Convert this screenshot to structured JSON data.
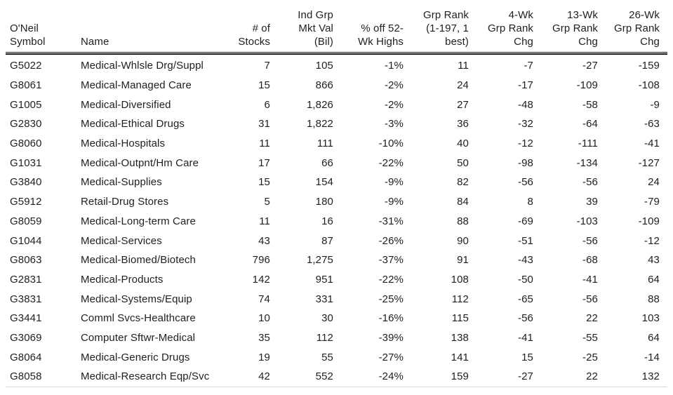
{
  "colors": {
    "text": "#1f1f1f",
    "header_rule": "#161616",
    "bottom_rule": "#d9d9d9",
    "background": "#ffffff"
  },
  "table": {
    "columns": [
      {
        "key": "symbol",
        "label": "O'Neil\nSymbol",
        "align": "left"
      },
      {
        "key": "name",
        "label": "Name",
        "align": "left"
      },
      {
        "key": "stocks",
        "label": "# of\nStocks",
        "align": "right"
      },
      {
        "key": "mktval",
        "label": "Ind Grp\nMkt Val\n(Bil)",
        "align": "right"
      },
      {
        "key": "pct_off",
        "label": "% off 52-\nWk Highs",
        "align": "right"
      },
      {
        "key": "grp_rank",
        "label": "Grp Rank\n(1-197, 1\nbest)",
        "align": "right"
      },
      {
        "key": "chg_4wk",
        "label": "4-Wk\nGrp Rank\nChg",
        "align": "right"
      },
      {
        "key": "chg_13wk",
        "label": "13-Wk\nGrp Rank\nChg",
        "align": "right"
      },
      {
        "key": "chg_26wk",
        "label": "26-Wk\nGrp Rank\nChg",
        "align": "right"
      }
    ],
    "rows": [
      [
        "G5022",
        "Medical-Whlsle Drg/Suppl",
        "7",
        "105",
        "-1%",
        "11",
        "-7",
        "-27",
        "-159"
      ],
      [
        "G8061",
        "Medical-Managed Care",
        "15",
        "866",
        "-2%",
        "24",
        "-17",
        "-109",
        "-108"
      ],
      [
        "G1005",
        "Medical-Diversified",
        "6",
        "1,826",
        "-2%",
        "27",
        "-48",
        "-58",
        "-9"
      ],
      [
        "G2830",
        "Medical-Ethical Drugs",
        "31",
        "1,822",
        "-3%",
        "36",
        "-32",
        "-64",
        "-63"
      ],
      [
        "G8060",
        "Medical-Hospitals",
        "11",
        "111",
        "-10%",
        "40",
        "-12",
        "-111",
        "-41"
      ],
      [
        "G1031",
        "Medical-Outpnt/Hm Care",
        "17",
        "66",
        "-22%",
        "50",
        "-98",
        "-134",
        "-127"
      ],
      [
        "G3840",
        "Medical-Supplies",
        "15",
        "154",
        "-9%",
        "82",
        "-56",
        "-56",
        "24"
      ],
      [
        "G5912",
        "Retail-Drug Stores",
        "5",
        "180",
        "-9%",
        "84",
        "8",
        "39",
        "-79"
      ],
      [
        "G8059",
        "Medical-Long-term Care",
        "11",
        "16",
        "-31%",
        "88",
        "-69",
        "-103",
        "-109"
      ],
      [
        "G1044",
        "Medical-Services",
        "43",
        "87",
        "-26%",
        "90",
        "-51",
        "-56",
        "-12"
      ],
      [
        "G8063",
        "Medical-Biomed/Biotech",
        "796",
        "1,275",
        "-37%",
        "91",
        "-43",
        "-68",
        "43"
      ],
      [
        "G2831",
        "Medical-Products",
        "142",
        "951",
        "-22%",
        "108",
        "-50",
        "-41",
        "64"
      ],
      [
        "G3831",
        "Medical-Systems/Equip",
        "74",
        "331",
        "-25%",
        "112",
        "-65",
        "-56",
        "88"
      ],
      [
        "G3441",
        "Comml Svcs-Healthcare",
        "10",
        "30",
        "-16%",
        "115",
        "-56",
        "22",
        "103"
      ],
      [
        "G3069",
        "Computer Sftwr-Medical",
        "35",
        "112",
        "-39%",
        "138",
        "-41",
        "-55",
        "64"
      ],
      [
        "G8064",
        "Medical-Generic Drugs",
        "19",
        "55",
        "-27%",
        "141",
        "15",
        "-25",
        "-14"
      ],
      [
        "G8058",
        "Medical-Research Eqp/Svc",
        "42",
        "552",
        "-24%",
        "159",
        "-27",
        "22",
        "132"
      ]
    ]
  }
}
